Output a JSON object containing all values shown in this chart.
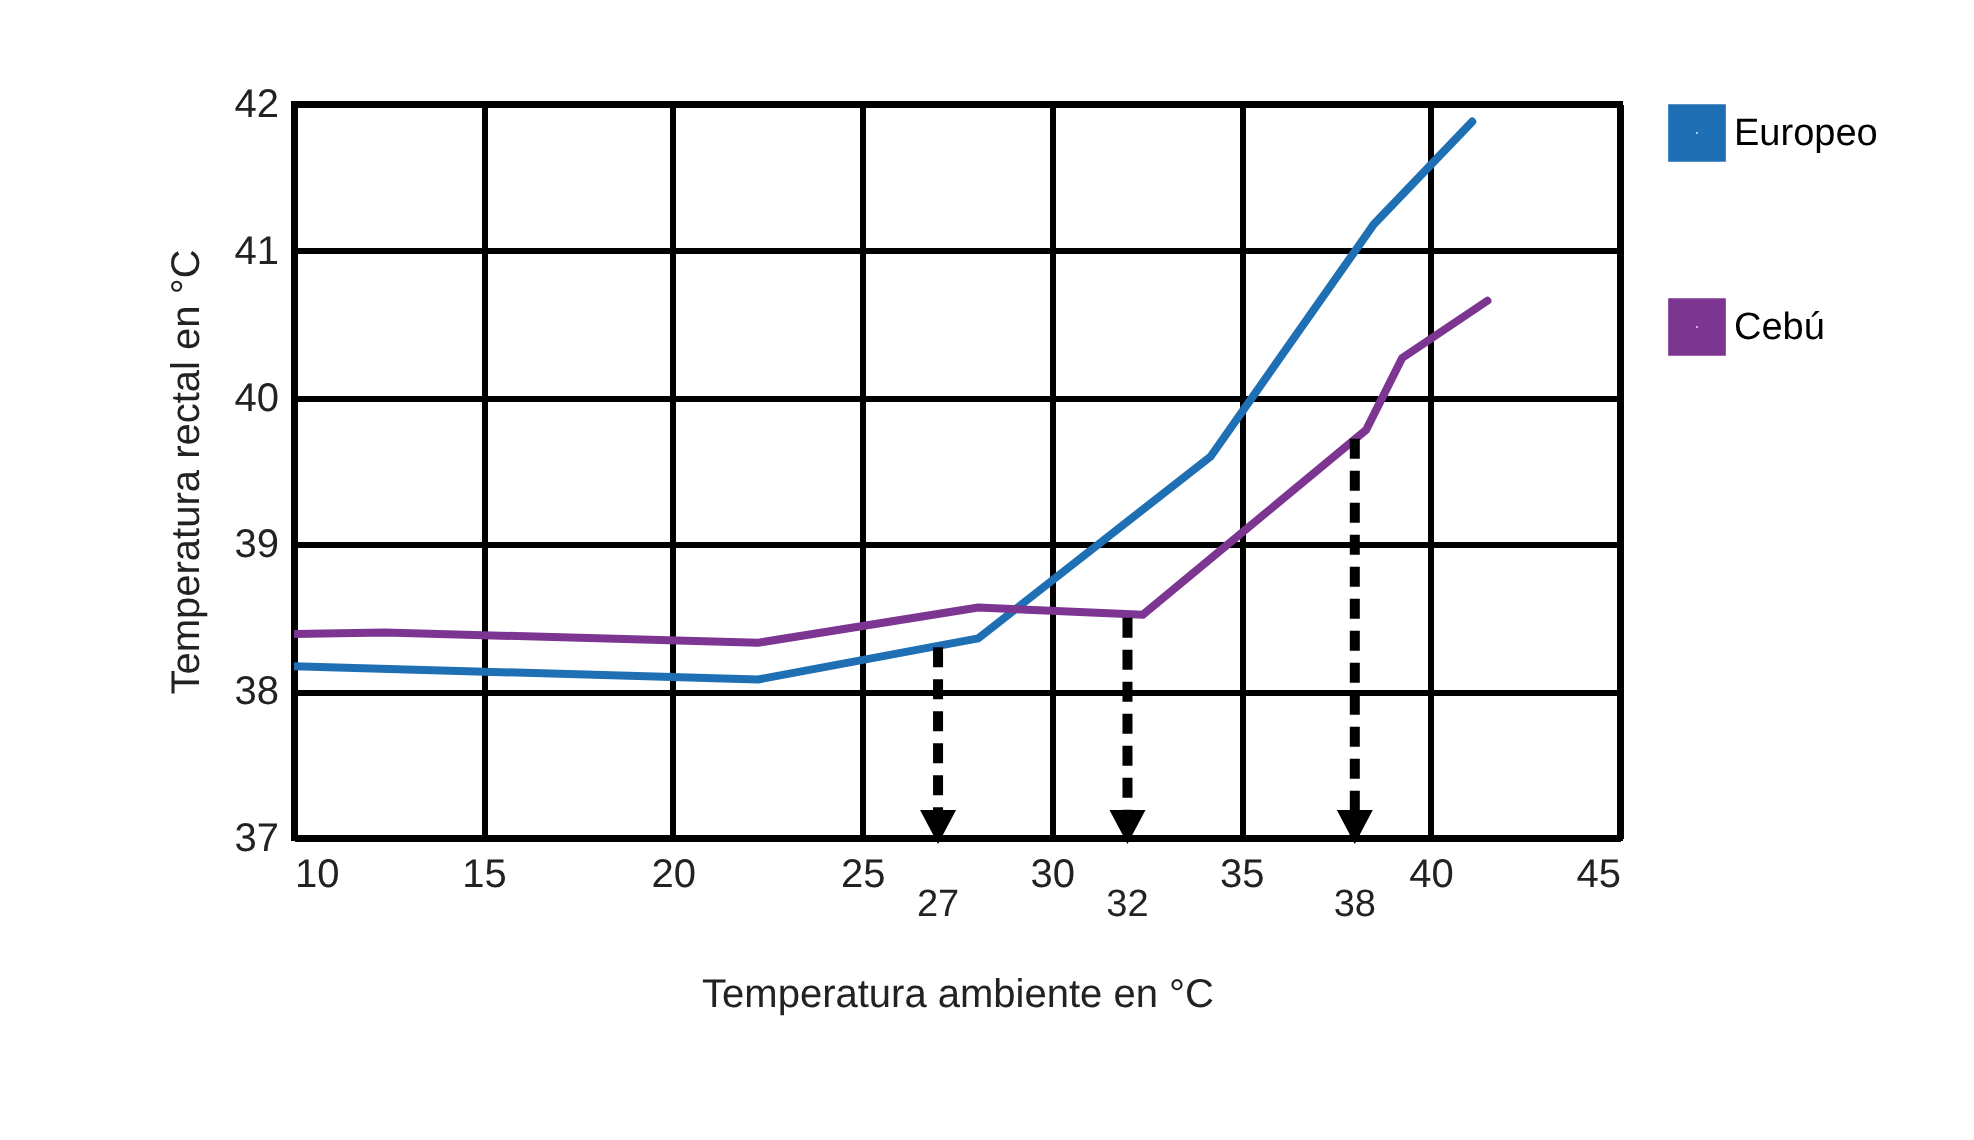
{
  "chart_data": {
    "type": "line",
    "xlabel": "Temperatura ambiente en °C",
    "ylabel": "Temperatura rectal en °C",
    "xlim": [
      10,
      45
    ],
    "xticks": [
      10,
      15,
      20,
      25,
      30,
      35,
      40,
      45
    ],
    "ylim": [
      37,
      42
    ],
    "yticks": [
      37,
      38,
      39,
      40,
      41,
      42
    ],
    "grid": true,
    "legend": "right",
    "marker": "none",
    "line_style": "solid",
    "series": [
      {
        "name": "Europeo",
        "color": "#1f6fb4",
        "x": [
          10,
          22.25,
          28.06,
          34.2,
          38.5,
          41.1
        ],
        "values": [
          38.17,
          38.08,
          38.36,
          39.6,
          41.18,
          41.88
        ]
      },
      {
        "name": "Cebú",
        "color": "#7d3592",
        "x": [
          10,
          12.4,
          22.25,
          28.06,
          32.4,
          38.3,
          39.25,
          41.5
        ],
        "values": [
          38.39,
          38.4,
          38.33,
          38.57,
          38.52,
          39.78,
          40.27,
          40.66
        ]
      }
    ],
    "annotations": [
      {
        "text": "27",
        "x": 27,
        "y": 38.3
      },
      {
        "text": "32",
        "x": 32,
        "y": 38.5
      },
      {
        "text": "38",
        "x": 38,
        "y": 39.72
      }
    ]
  }
}
